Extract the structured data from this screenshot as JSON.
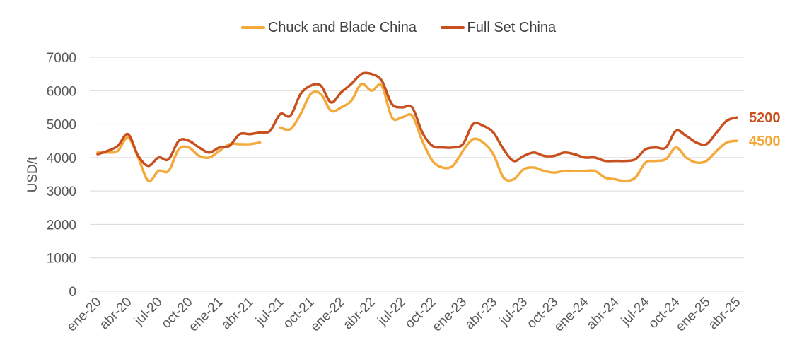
{
  "colors": {
    "chuck": "#F4A93B",
    "fullset": "#C8501E",
    "grid": "#D9D9D9",
    "text": "#595959"
  },
  "chart_data": {
    "type": "line",
    "title": "",
    "xlabel": "",
    "ylabel": "USD/t",
    "ylim": [
      0,
      7000
    ],
    "yticks": [
      "7000",
      "6000",
      "5000",
      "4000",
      "3000",
      "2000",
      "1000",
      "0"
    ],
    "grid": true,
    "legend_position": "top-center",
    "categories": [
      "ene-20",
      "feb-20",
      "mar-20",
      "abr-20",
      "may-20",
      "jun-20",
      "jul-20",
      "ago-20",
      "sep-20",
      "oct-20",
      "nov-20",
      "dic-20",
      "ene-21",
      "feb-21",
      "mar-21",
      "abr-21",
      "may-21",
      "jun-21",
      "jul-21",
      "ago-21",
      "sep-21",
      "oct-21",
      "nov-21",
      "dic-21",
      "ene-22",
      "feb-22",
      "mar-22",
      "abr-22",
      "may-22",
      "jun-22",
      "jul-22",
      "ago-22",
      "sep-22",
      "oct-22",
      "nov-22",
      "dic-22",
      "ene-23",
      "feb-23",
      "mar-23",
      "abr-23",
      "may-23",
      "jun-23",
      "jul-23",
      "ago-23",
      "sep-23",
      "oct-23",
      "nov-23",
      "dic-23",
      "ene-24",
      "feb-24",
      "mar-24",
      "abr-24",
      "may-24",
      "jun-24",
      "jul-24",
      "ago-24",
      "sep-24",
      "oct-24",
      "nov-24",
      "dic-24",
      "ene-25",
      "feb-25",
      "mar-25",
      "abr-25",
      "may-25"
    ],
    "x_tick_labels": [
      "ene-20",
      "abr-20",
      "jul-20",
      "oct-20",
      "ene-21",
      "abr-21",
      "jul-21",
      "oct-21",
      "ene-22",
      "abr-22",
      "jul-22",
      "oct-22",
      "ene-23",
      "abr-23",
      "jul-23",
      "oct-23",
      "ene-24",
      "abr-24",
      "jul-24",
      "oct-24",
      "ene-25",
      "abr-25"
    ],
    "series": [
      {
        "name": "Chuck and Blade China",
        "values": [
          4150,
          4150,
          4200,
          4600,
          4000,
          3300,
          3600,
          3600,
          4250,
          4300,
          4050,
          4000,
          4200,
          4400,
          4400,
          4400,
          4450,
          null,
          4900,
          4850,
          5300,
          5900,
          5900,
          5400,
          5500,
          5700,
          6200,
          6000,
          6150,
          5200,
          5200,
          5250,
          4500,
          3900,
          3700,
          3750,
          4200,
          4550,
          4450,
          4100,
          3400,
          3350,
          3650,
          3700,
          3600,
          3550,
          3600,
          3600,
          3600,
          3600,
          3400,
          3350,
          3300,
          3400,
          3850,
          3900,
          3950,
          4300,
          4000,
          3850,
          3900,
          4200,
          4450,
          4500,
          null
        ],
        "end_label": "4500"
      },
      {
        "name": "Full Set China",
        "values": [
          4100,
          4200,
          4350,
          4700,
          4050,
          3750,
          4000,
          3950,
          4500,
          4500,
          4300,
          4150,
          4300,
          4350,
          4700,
          4700,
          4750,
          4800,
          5300,
          5250,
          5900,
          6150,
          6150,
          5650,
          5950,
          6200,
          6500,
          6500,
          6300,
          5600,
          5500,
          5500,
          4750,
          4350,
          4300,
          4300,
          4400,
          5000,
          4950,
          4750,
          4250,
          3900,
          4050,
          4150,
          4050,
          4050,
          4150,
          4100,
          4000,
          4000,
          3900,
          3900,
          3900,
          3950,
          4250,
          4300,
          4300,
          4800,
          4650,
          4450,
          4400,
          4750,
          5100,
          5200,
          null
        ],
        "end_label": "5200"
      }
    ]
  }
}
